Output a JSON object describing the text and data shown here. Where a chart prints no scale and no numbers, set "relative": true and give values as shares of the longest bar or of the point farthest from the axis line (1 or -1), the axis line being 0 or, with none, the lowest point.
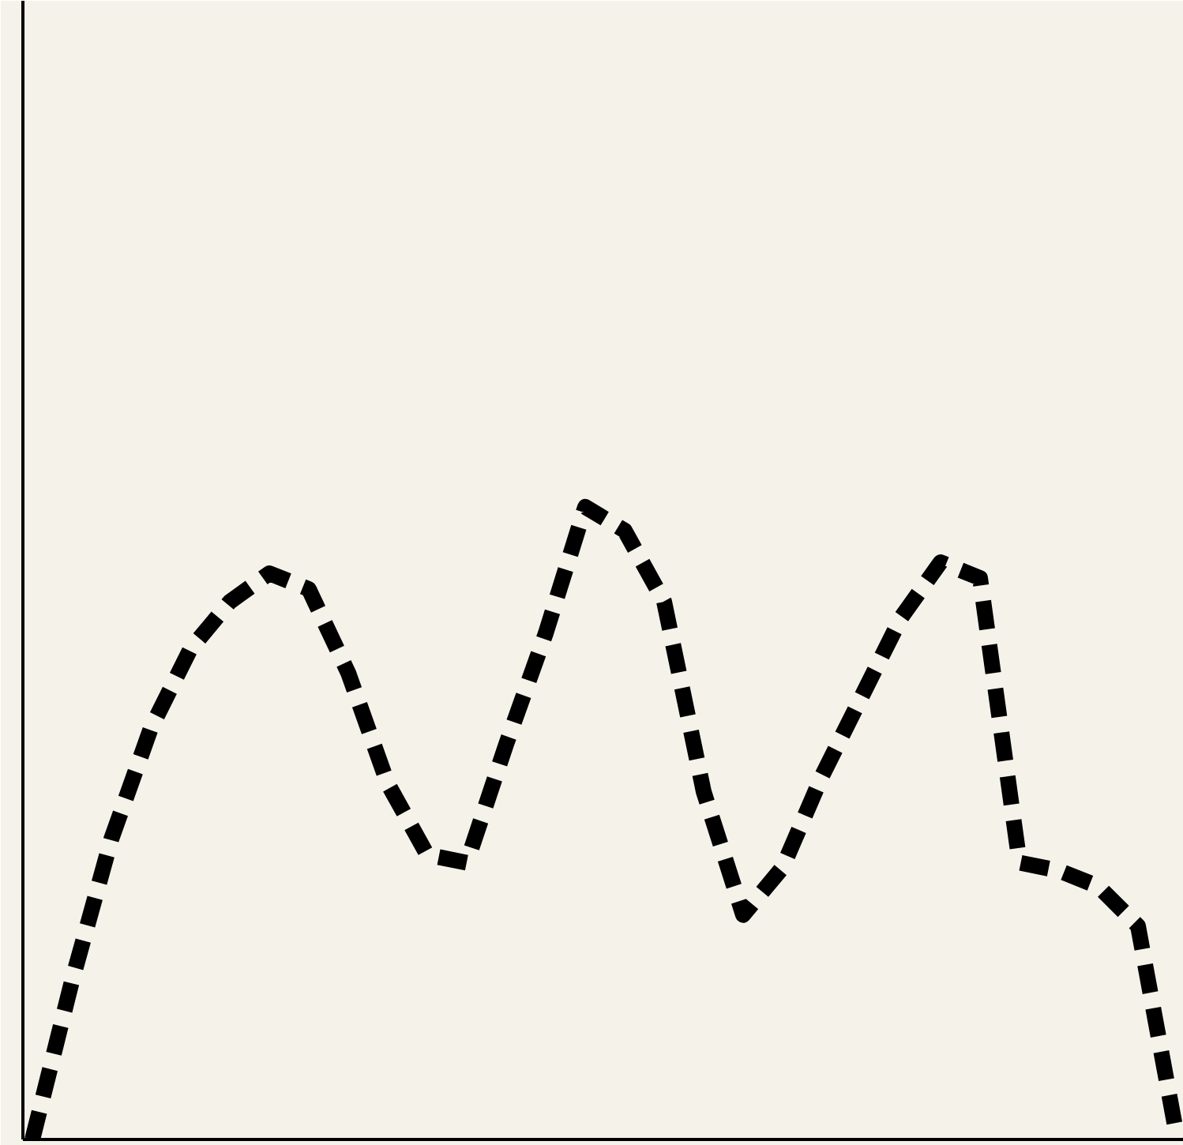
{
  "chart_data": {
    "type": "line",
    "relative": true,
    "tick_labels": false,
    "line_style": "dashed",
    "categories": [
      null,
      null,
      null,
      null,
      null,
      null,
      null,
      null,
      null,
      null,
      null,
      null,
      null,
      null,
      null,
      null,
      null,
      null,
      null,
      null,
      null,
      null,
      null,
      null,
      null,
      null,
      null,
      null,
      null,
      null
    ],
    "series": [
      {
        "color": "#000000",
        "values": [
          0,
          0.25,
          0.475,
          0.65,
          0.775,
          0.85,
          0.895,
          0.87,
          0.7375,
          0.5625,
          0.45,
          0.4375,
          0.625,
          0.8,
          1,
          0.9625,
          0.85,
          0.55,
          0.355,
          0.43,
          0.575,
          0.7,
          0.825,
          0.9125,
          0.8875,
          0.4375,
          0.425,
          0.4,
          0.3375,
          0
        ]
      }
    ]
  }
}
